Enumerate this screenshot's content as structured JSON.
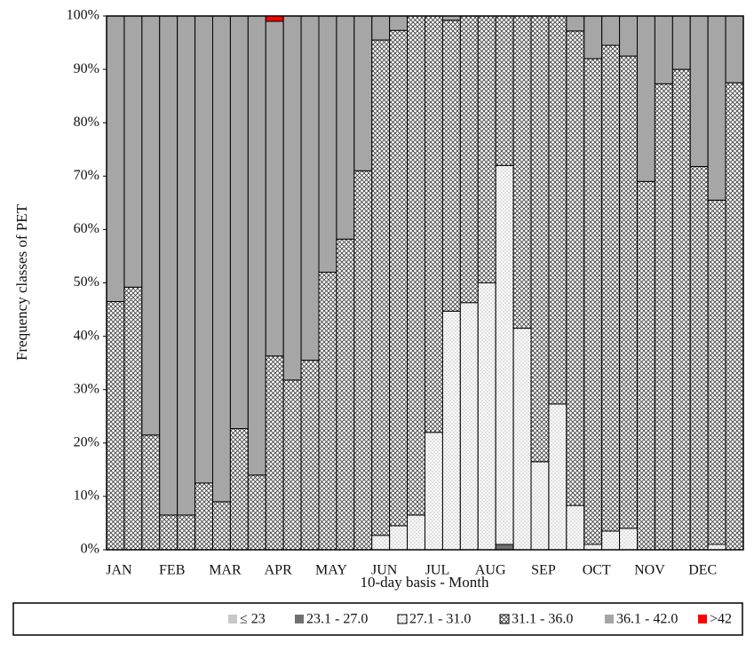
{
  "chart_data": {
    "type": "stacked-bar",
    "y_label": "Frequency classes of PET",
    "x_label": "10-day basis - Month",
    "categories": [
      "JAN",
      null,
      null,
      "FEB",
      null,
      null,
      "MAR",
      null,
      null,
      "APR",
      null,
      null,
      "MAY",
      null,
      null,
      "JUN",
      null,
      null,
      "JUL",
      null,
      null,
      "AUG",
      null,
      null,
      "SEP",
      null,
      null,
      "OCT",
      null,
      null,
      "NOV",
      null,
      null,
      "DEC",
      null,
      null
    ],
    "ylim": [
      0,
      100
    ],
    "yticks": [
      {
        "value": 0,
        "label": "0%"
      },
      {
        "value": 10,
        "label": "10%"
      },
      {
        "value": 20,
        "label": "20%"
      },
      {
        "value": 30,
        "label": "30%"
      },
      {
        "value": 40,
        "label": "40%"
      },
      {
        "value": 50,
        "label": "50%"
      },
      {
        "value": 60,
        "label": "60%"
      },
      {
        "value": 70,
        "label": "70%"
      },
      {
        "value": 80,
        "label": "80%"
      },
      {
        "value": 90,
        "label": "90%"
      },
      {
        "value": 100,
        "label": "100%"
      }
    ],
    "legend_position": "bottom",
    "series": [
      {
        "name": "≤ 23",
        "color": "#c8c8c8",
        "pattern": "solid",
        "values": [
          0,
          0,
          0,
          0,
          0,
          0,
          0,
          0,
          0,
          0,
          0,
          0,
          0,
          0,
          0,
          0,
          0,
          0,
          0,
          0,
          0,
          0,
          0,
          0,
          0,
          0,
          0,
          0,
          0,
          0,
          0,
          0,
          0,
          0,
          0,
          0
        ]
      },
      {
        "name": "23.1 - 27.0",
        "color": "#707070",
        "pattern": "solid",
        "values": [
          0,
          0,
          0,
          0,
          0,
          0,
          0,
          0,
          0,
          0,
          0,
          0,
          0,
          0,
          0,
          0,
          0,
          0,
          0,
          0,
          0,
          0,
          1,
          0,
          0,
          0,
          0,
          0,
          0,
          0,
          0,
          0,
          0,
          0,
          0,
          0
        ]
      },
      {
        "name": "27.1 - 31.0",
        "color": "#ffffff",
        "pattern": "dots",
        "values": [
          0,
          0,
          0,
          0,
          0,
          0,
          0,
          0,
          0,
          0,
          0,
          0,
          0,
          0,
          0,
          2.7,
          4.5,
          6.5,
          22,
          44.7,
          46.3,
          50,
          71,
          41.5,
          16.5,
          27.3,
          8.3,
          1,
          3.5,
          4,
          0,
          0,
          0,
          0,
          1,
          0
        ]
      },
      {
        "name": "31.1 - 36.0",
        "color": "#ffffff",
        "pattern": "cross",
        "values": [
          46.5,
          49.2,
          21.5,
          6.5,
          6.5,
          12.5,
          9,
          22.7,
          14,
          36.3,
          31.8,
          35.5,
          52,
          58.2,
          71,
          92.8,
          92.8,
          93.5,
          78,
          54.5,
          53.7,
          50,
          28,
          58.5,
          83.5,
          72.7,
          88.9,
          91,
          91,
          88.5,
          69,
          87.3,
          90,
          71.8,
          64.5,
          87.5
        ]
      },
      {
        "name": "36.1 - 42.0",
        "color": "#a6a6a6",
        "pattern": "solid",
        "values": [
          53.5,
          50.8,
          78.5,
          93.5,
          93.5,
          87.5,
          91,
          77.3,
          86,
          62.7,
          68.2,
          64.5,
          48,
          41.8,
          29,
          4.5,
          2.7,
          0,
          0,
          0.8,
          0,
          0,
          0,
          0,
          0,
          0,
          2.8,
          8,
          5.5,
          7.5,
          31,
          12.7,
          10,
          28.2,
          34.5,
          12.5
        ]
      },
      {
        "name": ">42",
        "color": "#ff0000",
        "pattern": "solid",
        "values": [
          0,
          0,
          0,
          0,
          0,
          0,
          0,
          0,
          0,
          1,
          0,
          0,
          0,
          0,
          0,
          0,
          0,
          0,
          0,
          0,
          0,
          0,
          0,
          0,
          0,
          0,
          0,
          0,
          0,
          0,
          0,
          0,
          0,
          0,
          0,
          0
        ]
      }
    ]
  }
}
